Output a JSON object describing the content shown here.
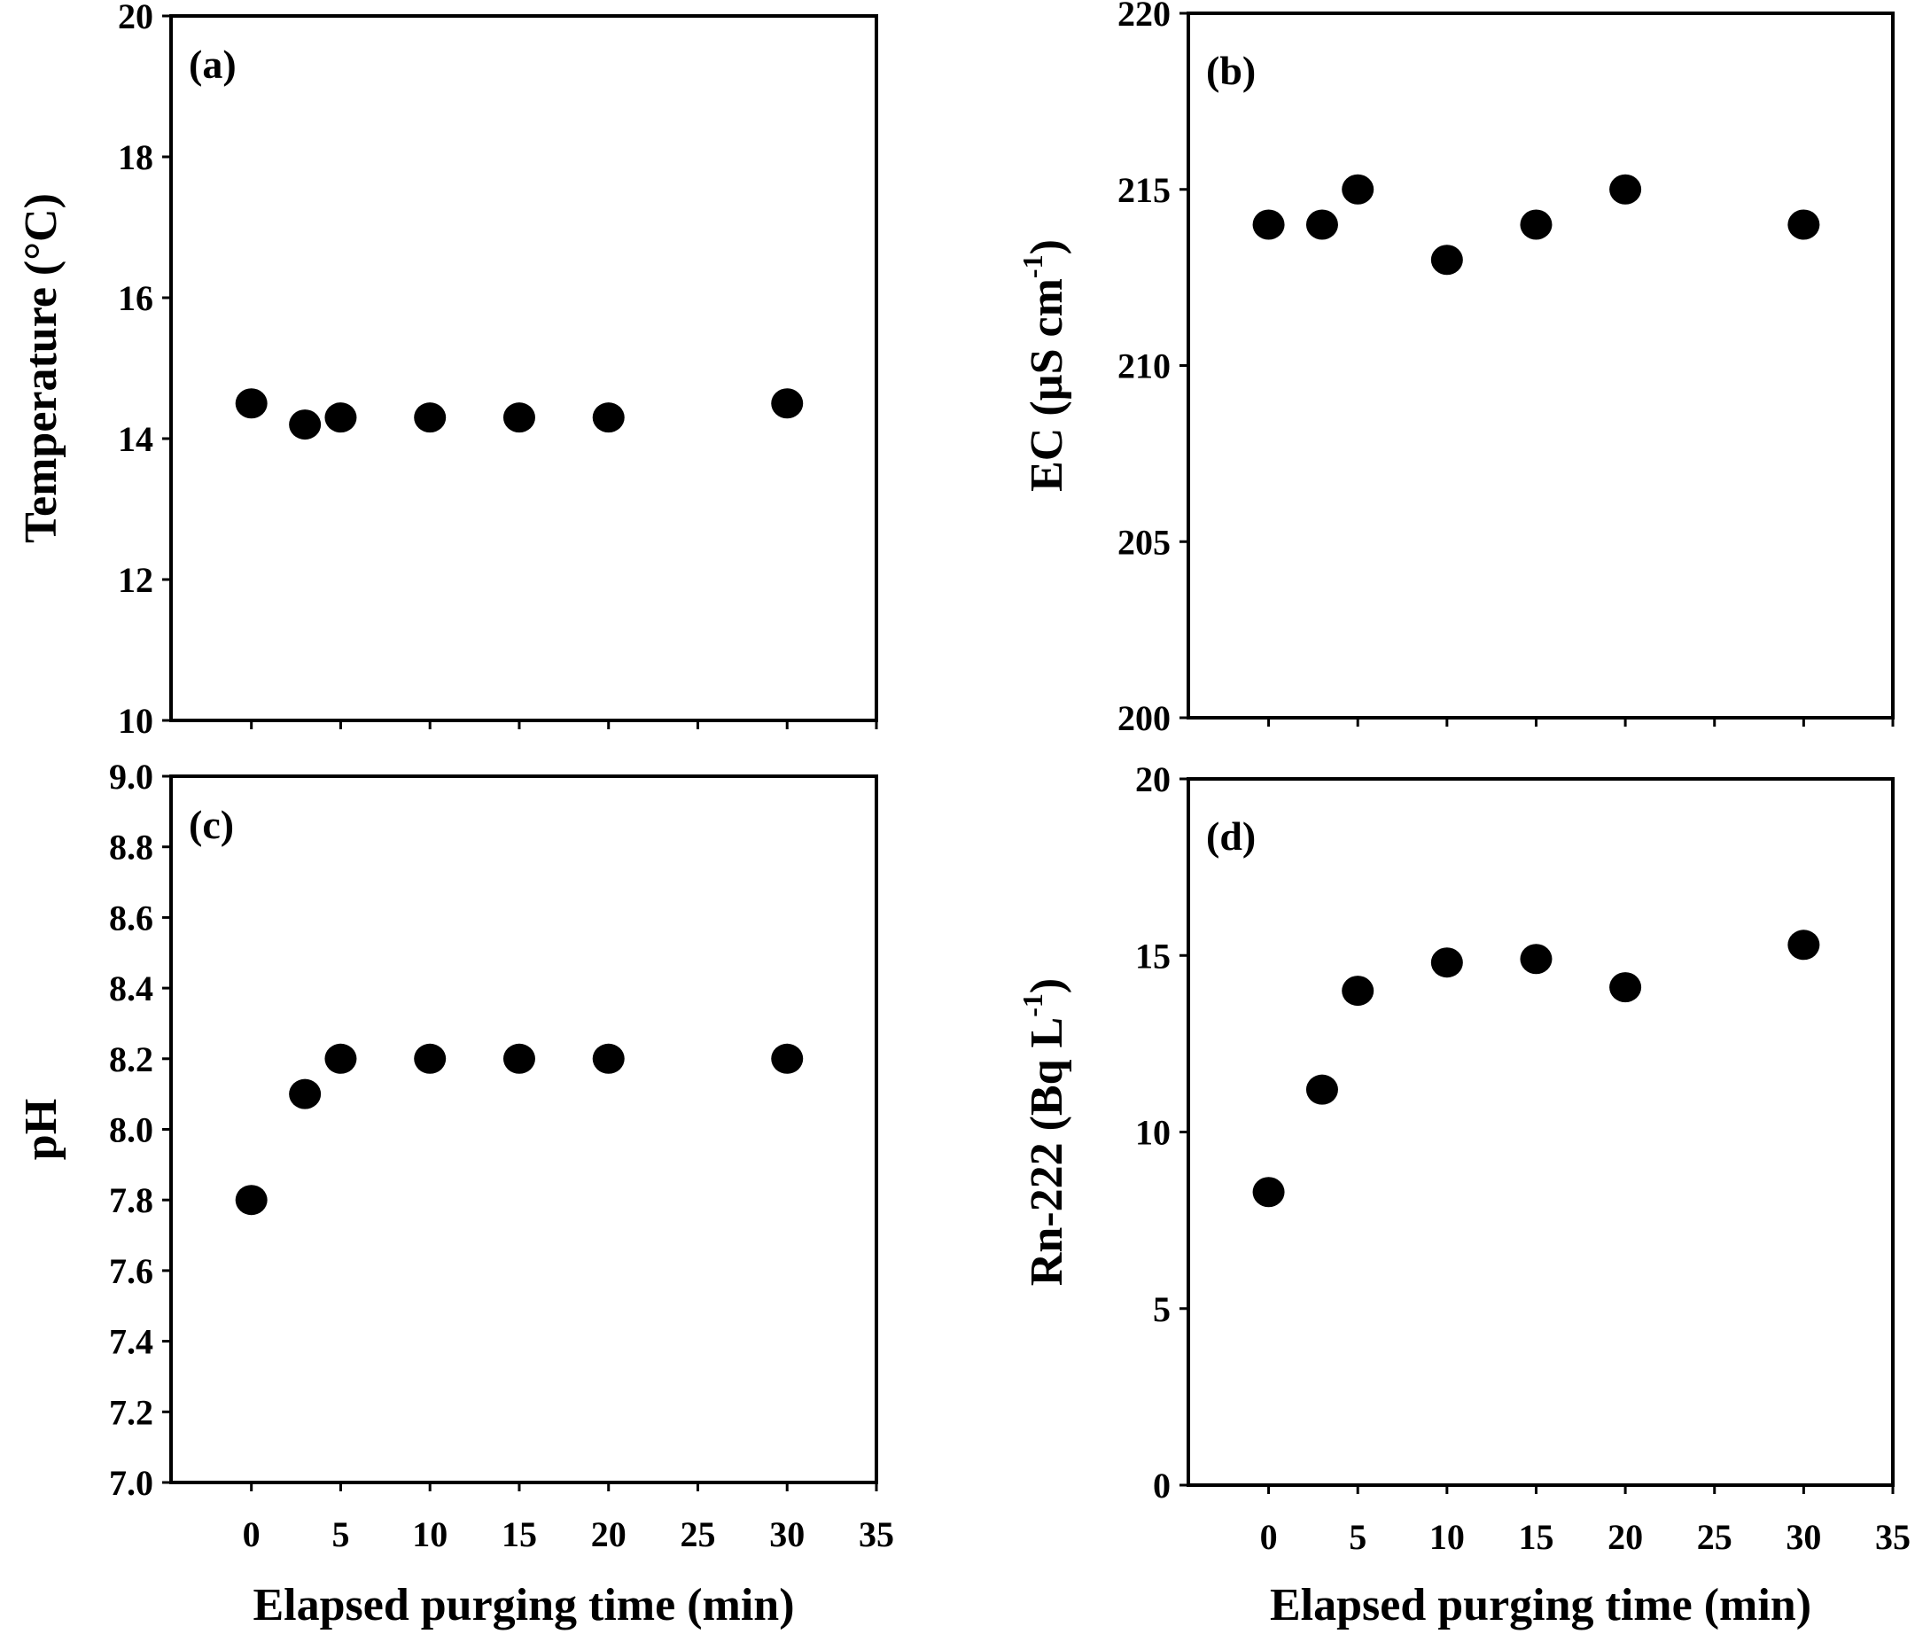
{
  "chart_data": [
    {
      "type": "scatter",
      "panel_label": "(a)",
      "xlabel": "",
      "ylabel": "Temperature (°C)",
      "xlim": [
        -4.5,
        35
      ],
      "ylim": [
        10,
        20
      ],
      "xticks": [
        0,
        5,
        10,
        15,
        20,
        25,
        30,
        35
      ],
      "yticks": [
        10,
        12,
        14,
        16,
        18,
        20
      ],
      "ytick_labels": [
        "10",
        "12",
        "14",
        "16",
        "18",
        "20"
      ],
      "show_xtick_labels": false,
      "x": [
        0,
        3,
        5,
        10,
        15,
        20,
        30
      ],
      "y": [
        14.5,
        14.2,
        14.3,
        14.3,
        14.3,
        14.3,
        14.5
      ],
      "grid": false
    },
    {
      "type": "scatter",
      "panel_label": "(b)",
      "xlabel": "",
      "ylabel": "EC (µS cm",
      "ylabel_sup": "-1",
      "ylabel_end": ")",
      "xlim": [
        -4.5,
        35
      ],
      "ylim": [
        200,
        220
      ],
      "xticks": [
        0,
        5,
        10,
        15,
        20,
        25,
        30,
        35
      ],
      "yticks": [
        200,
        205,
        210,
        215,
        220
      ],
      "ytick_labels": [
        "200",
        "205",
        "210",
        "215",
        "220"
      ],
      "show_xtick_labels": false,
      "x": [
        0,
        3,
        5,
        10,
        15,
        20,
        30
      ],
      "y": [
        214,
        214,
        215,
        213,
        214,
        215,
        214
      ],
      "grid": false
    },
    {
      "type": "scatter",
      "panel_label": "(c)",
      "xlabel": "Elapsed purging time (min)",
      "ylabel": "pH",
      "xlim": [
        -4.5,
        35
      ],
      "ylim": [
        7.0,
        9.0
      ],
      "xticks": [
        0,
        5,
        10,
        15,
        20,
        25,
        30,
        35
      ],
      "xtick_labels": [
        "0",
        "5",
        "10",
        "15",
        "20",
        "25",
        "30",
        "35"
      ],
      "yticks": [
        7.0,
        7.2,
        7.4,
        7.6,
        7.8,
        8.0,
        8.2,
        8.4,
        8.6,
        8.8,
        9.0
      ],
      "ytick_labels": [
        "7.0",
        "7.2",
        "7.4",
        "7.6",
        "7.8",
        "8.0",
        "8.2",
        "8.4",
        "8.6",
        "8.8",
        "9.0"
      ],
      "show_xtick_labels": true,
      "x": [
        0,
        3,
        5,
        10,
        15,
        20,
        30
      ],
      "y": [
        7.8,
        8.1,
        8.2,
        8.2,
        8.2,
        8.2,
        8.2
      ],
      "grid": false
    },
    {
      "type": "scatter",
      "panel_label": "(d)",
      "xlabel": "Elapsed purging time (min)",
      "ylabel": "Rn-222 (Bq L",
      "ylabel_sup": "-1",
      "ylabel_end": ")",
      "xlim": [
        -4.5,
        35
      ],
      "ylim": [
        0,
        20
      ],
      "xticks": [
        0,
        5,
        10,
        15,
        20,
        25,
        30,
        35
      ],
      "xtick_labels": [
        "0",
        "5",
        "10",
        "15",
        "20",
        "25",
        "30",
        "35"
      ],
      "yticks": [
        0,
        5,
        10,
        15,
        20
      ],
      "ytick_labels": [
        "0",
        "5",
        "10",
        "15",
        "20"
      ],
      "show_xtick_labels": true,
      "x": [
        0,
        3,
        5,
        10,
        15,
        20,
        30
      ],
      "y": [
        8.3,
        11.2,
        14.0,
        14.8,
        14.9,
        14.1,
        15.3
      ],
      "grid": false
    }
  ]
}
